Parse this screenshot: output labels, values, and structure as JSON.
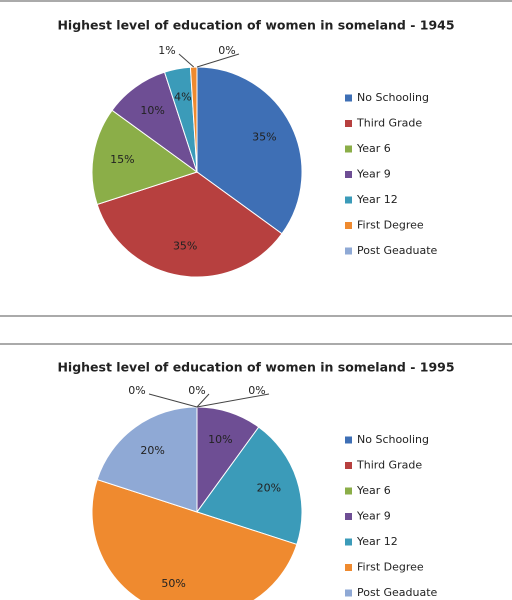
{
  "chart_data": [
    {
      "type": "pie",
      "title": "Highest level of education of women in someland - 1945",
      "categories": [
        "No Schooling",
        "Third Grade",
        "Year 6",
        "Year 9",
        "Year 12",
        "First Degree",
        "Post Geaduate"
      ],
      "values": [
        35,
        35,
        15,
        10,
        4,
        1,
        0
      ],
      "value_labels": [
        "35%",
        "35%",
        "15%",
        "10%",
        "4%",
        "1%",
        "0%"
      ],
      "colors": [
        "#3e6fb5",
        "#b7403f",
        "#8bae48",
        "#6e4e94",
        "#3b9bb9",
        "#ef8a2f",
        "#8fa9d5"
      ],
      "legend": "right"
    },
    {
      "type": "pie",
      "title": "Highest level of education of women in someland - 1995",
      "categories": [
        "No Schooling",
        "Third Grade",
        "Year 6",
        "Year 9",
        "Year 12",
        "First Degree",
        "Post Geaduate"
      ],
      "values": [
        0,
        0,
        0,
        10,
        20,
        50,
        20
      ],
      "value_labels": [
        "0%",
        "0%",
        "0%",
        "10%",
        "20%",
        "50%",
        "20%"
      ],
      "colors": [
        "#3e6fb5",
        "#b7403f",
        "#8bae48",
        "#6e4e94",
        "#3b9bb9",
        "#ef8a2f",
        "#8fa9d5"
      ],
      "legend": "right"
    }
  ]
}
